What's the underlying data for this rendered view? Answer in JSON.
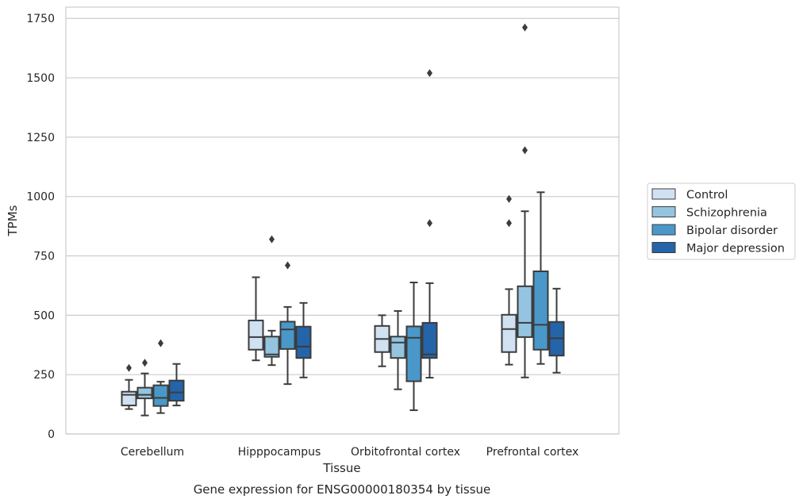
{
  "chart_data": {
    "type": "boxplot",
    "title": "Gene expression for ENSG00000180354 by tissue",
    "xlabel": "Tissue",
    "ylabel": "TPMs",
    "ylim": [
      0,
      1800
    ],
    "yticks": [
      0,
      250,
      500,
      750,
      1000,
      1250,
      1500,
      1750
    ],
    "grid": true,
    "legend_position": "right",
    "categories": [
      "Cerebellum",
      "Hipppocampus",
      "Orbitofrontal cortex",
      "Prefrontal cortex"
    ],
    "series": [
      {
        "name": "Control",
        "color": "#d0e1f2",
        "boxes": [
          {
            "whisker_low": 105,
            "q1": 120,
            "median": 165,
            "q3": 178,
            "whisker_high": 228,
            "outliers": [
              278
            ]
          },
          {
            "whisker_low": 310,
            "q1": 355,
            "median": 408,
            "q3": 478,
            "whisker_high": 660,
            "outliers": []
          },
          {
            "whisker_low": 285,
            "q1": 345,
            "median": 400,
            "q3": 455,
            "whisker_high": 500,
            "outliers": []
          },
          {
            "whisker_low": 292,
            "q1": 345,
            "median": 442,
            "q3": 502,
            "whisker_high": 610,
            "outliers": [
              888,
              990
            ]
          }
        ]
      },
      {
        "name": "Schizophrenia",
        "color": "#94c4df",
        "boxes": [
          {
            "whisker_low": 78,
            "q1": 150,
            "median": 165,
            "q3": 195,
            "whisker_high": 255,
            "outliers": [
              300
            ]
          },
          {
            "whisker_low": 290,
            "q1": 325,
            "median": 335,
            "q3": 410,
            "whisker_high": 435,
            "outliers": [
              820
            ]
          },
          {
            "whisker_low": 188,
            "q1": 320,
            "median": 385,
            "q3": 410,
            "whisker_high": 518,
            "outliers": []
          },
          {
            "whisker_low": 238,
            "q1": 408,
            "median": 468,
            "q3": 622,
            "whisker_high": 938,
            "outliers": [
              1195,
              1712
            ]
          }
        ]
      },
      {
        "name": "Bipolar disorder",
        "color": "#4a98c9",
        "boxes": [
          {
            "whisker_low": 88,
            "q1": 118,
            "median": 152,
            "q3": 205,
            "whisker_high": 220,
            "outliers": [
              382
            ]
          },
          {
            "whisker_low": 210,
            "q1": 358,
            "median": 440,
            "q3": 473,
            "whisker_high": 535,
            "outliers": [
              710
            ]
          },
          {
            "whisker_low": 100,
            "q1": 222,
            "median": 405,
            "q3": 453,
            "whisker_high": 638,
            "outliers": []
          },
          {
            "whisker_low": 295,
            "q1": 355,
            "median": 460,
            "q3": 685,
            "whisker_high": 1018,
            "outliers": []
          }
        ]
      },
      {
        "name": "Major depression",
        "color": "#2464a9",
        "boxes": [
          {
            "whisker_low": 120,
            "q1": 140,
            "median": 175,
            "q3": 225,
            "whisker_high": 295,
            "outliers": []
          },
          {
            "whisker_low": 238,
            "q1": 320,
            "median": 368,
            "q3": 452,
            "whisker_high": 552,
            "outliers": []
          },
          {
            "whisker_low": 237,
            "q1": 320,
            "median": 335,
            "q3": 468,
            "whisker_high": 635,
            "outliers": [
              888,
              1520
            ]
          },
          {
            "whisker_low": 258,
            "q1": 330,
            "median": 403,
            "q3": 472,
            "whisker_high": 612,
            "outliers": []
          }
        ]
      }
    ]
  }
}
